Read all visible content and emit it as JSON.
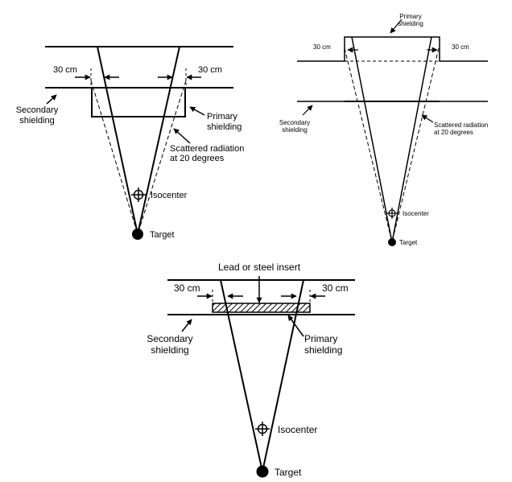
{
  "diagram_a": {
    "left_dim": "30 cm",
    "right_dim": "30 cm",
    "secondary_line1": "Secondary",
    "secondary_line2": "shielding",
    "primary_line1": "Primary",
    "primary_line2": "shielding",
    "scatter_line1": "Scattered radiation",
    "scatter_line2": "at 20 degrees",
    "isocenter": "Isocenter",
    "target": "Target"
  },
  "diagram_b": {
    "primary_line1": "Primary",
    "primary_line2": "shielding",
    "left_dim": "30 cm",
    "right_dim": "30 cm",
    "secondary_line1": "Secondary",
    "secondary_line2": "shielding",
    "scatter_line1": "Scattered radiation",
    "scatter_line2": "at 20 degrees",
    "isocenter": "Isocenter",
    "target": "Target"
  },
  "diagram_c": {
    "insert_label": "Lead or steel insert",
    "left_dim": "30 cm",
    "right_dim": "30 cm",
    "secondary_line1": "Secondary",
    "secondary_line2": "shielding",
    "primary_line1": "Primary",
    "primary_line2": "shielding",
    "isocenter": "Isocenter",
    "target": "Target"
  }
}
